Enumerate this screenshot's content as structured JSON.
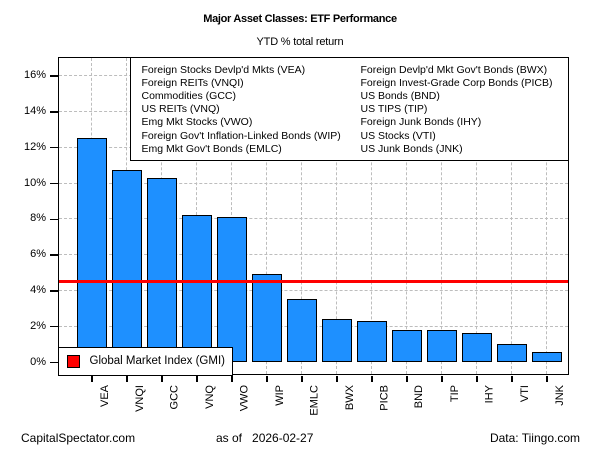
{
  "chart_data": {
    "type": "bar",
    "title": "Major Asset Classes: ETF Performance",
    "subtitle": "YTD % total return",
    "categories": [
      "VEA",
      "VNQI",
      "GCC",
      "VNQ",
      "VWO",
      "WIP",
      "EMLC",
      "BWX",
      "PICB",
      "BND",
      "TIP",
      "IHY",
      "VTI",
      "JNK"
    ],
    "values": [
      12.5,
      10.7,
      10.3,
      8.2,
      8.1,
      4.9,
      3.5,
      2.4,
      2.3,
      1.8,
      1.8,
      1.6,
      1.0,
      0.55
    ],
    "y_ticks": [
      0,
      2,
      4,
      6,
      8,
      10,
      12,
      14,
      16
    ],
    "y_tick_suffix": "%",
    "ylim": [
      0,
      16
    ],
    "grid": true,
    "bar_color": "#1E90FF",
    "bar_border_color": "#000000",
    "gridline_color": "#bdbdbd",
    "reference_line": {
      "value": 4.5,
      "label": "Global Market Index (GMI)",
      "color": "#FF0000"
    },
    "etf_legend": {
      "left_column": [
        "Foreign Stocks Devlp'd Mkts (VEA)",
        "Foreign REITs (VNQI)",
        "Commodities (GCC)",
        "US REITs (VNQ)",
        "Emg Mkt Stocks (VWO)",
        "Foreign Gov't Inflation-Linked Bonds (WIP)",
        "Emg Mkt Gov't Bonds (EMLC)"
      ],
      "right_column": [
        "Foreign Devlp'd Mkt Gov't Bonds (BWX)",
        "Foreign Invest-Grade Corp Bonds (PICB)",
        "US Bonds (BND)",
        "US TIPS (TIP)",
        "Foreign Junk Bonds (IHY)",
        "US Stocks (VTI)",
        "US Junk Bonds (JNK)"
      ]
    }
  },
  "footer": {
    "site": "CapitalSpectator.com",
    "as_of_label": "as of",
    "as_of_date": "2026-02-27",
    "source": "Data: Tiingo.com"
  }
}
